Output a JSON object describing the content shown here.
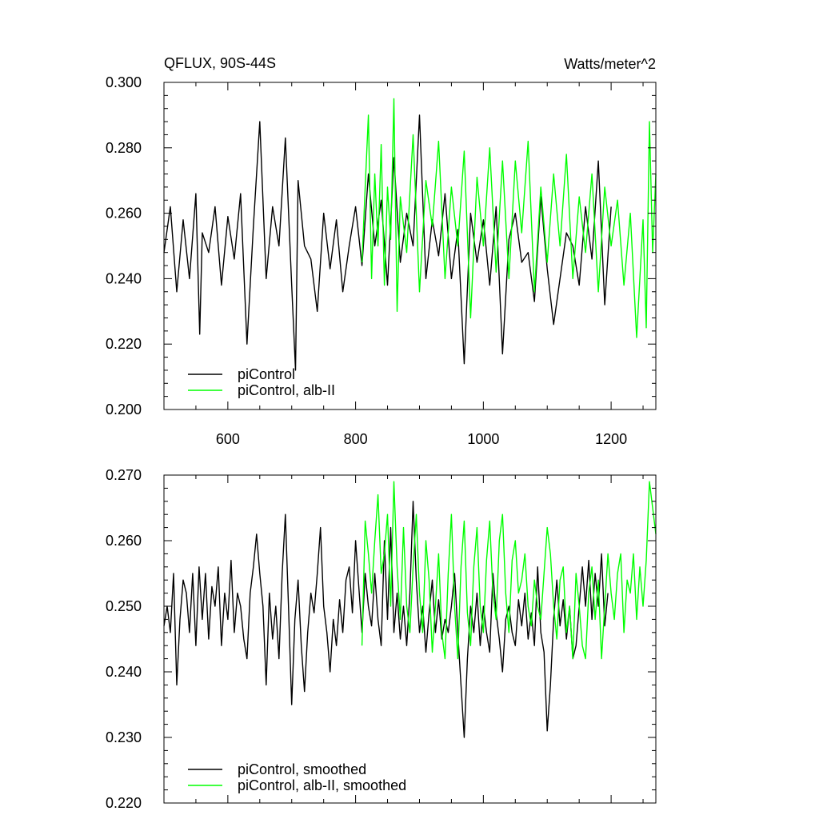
{
  "header": {
    "left": "QFLUX, 90S-44S",
    "right": "Watts/meter^2"
  },
  "colors": {
    "piControl": "#000000",
    "alb_II": "#00ff00",
    "axis": "#000000"
  },
  "chart_data": [
    {
      "type": "line",
      "title": "",
      "xlabel": "",
      "ylabel": "",
      "xlim": [
        500,
        1270
      ],
      "ylim": [
        0.2,
        0.3
      ],
      "x_ticks": [
        600,
        800,
        1000,
        1200
      ],
      "x_tick_labels": [
        "600",
        "800",
        "1000",
        "1200"
      ],
      "y_ticks": [
        0.2,
        0.22,
        0.24,
        0.26,
        0.28,
        0.3
      ],
      "y_tick_labels": [
        "0.200",
        "0.220",
        "0.240",
        "0.260",
        "0.280",
        "0.300"
      ],
      "grid": false,
      "legend_position": "bottom-left",
      "series": [
        {
          "name": "piControl",
          "color": "#000000",
          "x": [
            500,
            510,
            520,
            530,
            540,
            550,
            556,
            560,
            570,
            580,
            590,
            600,
            610,
            620,
            630,
            640,
            650,
            660,
            670,
            680,
            690,
            700,
            706,
            710,
            720,
            730,
            740,
            750,
            760,
            770,
            780,
            790,
            800,
            810,
            820,
            830,
            840,
            850,
            860,
            870,
            880,
            890,
            900,
            910,
            920,
            930,
            940,
            950,
            960,
            970,
            980,
            990,
            1000,
            1010,
            1020,
            1030,
            1040,
            1050,
            1060,
            1070,
            1080,
            1090,
            1100,
            1110,
            1120,
            1130,
            1140,
            1150,
            1160,
            1170,
            1180,
            1190,
            1200
          ],
          "y": [
            0.248,
            0.262,
            0.236,
            0.258,
            0.24,
            0.266,
            0.223,
            0.254,
            0.248,
            0.262,
            0.238,
            0.259,
            0.246,
            0.266,
            0.22,
            0.256,
            0.288,
            0.24,
            0.262,
            0.25,
            0.283,
            0.238,
            0.212,
            0.27,
            0.25,
            0.246,
            0.23,
            0.26,
            0.243,
            0.258,
            0.236,
            0.25,
            0.262,
            0.244,
            0.272,
            0.25,
            0.264,
            0.238,
            0.277,
            0.245,
            0.26,
            0.25,
            0.29,
            0.24,
            0.258,
            0.247,
            0.266,
            0.24,
            0.255,
            0.214,
            0.26,
            0.245,
            0.258,
            0.238,
            0.262,
            0.217,
            0.252,
            0.26,
            0.245,
            0.248,
            0.233,
            0.265,
            0.243,
            0.226,
            0.24,
            0.254,
            0.25,
            0.238,
            0.262,
            0.246,
            0.276,
            0.232,
            0.262
          ]
        },
        {
          "name": "piControl, alb-II",
          "color": "#00ff00",
          "x": [
            810,
            815,
            820,
            825,
            830,
            835,
            840,
            845,
            850,
            855,
            860,
            865,
            870,
            880,
            890,
            900,
            910,
            920,
            930,
            940,
            950,
            960,
            970,
            980,
            990,
            1000,
            1010,
            1020,
            1030,
            1040,
            1050,
            1060,
            1070,
            1080,
            1090,
            1100,
            1110,
            1120,
            1130,
            1140,
            1150,
            1160,
            1170,
            1180,
            1190,
            1200,
            1210,
            1220,
            1230,
            1240,
            1250,
            1255,
            1260,
            1265,
            1270
          ],
          "y": [
            0.245,
            0.268,
            0.29,
            0.24,
            0.272,
            0.25,
            0.281,
            0.238,
            0.268,
            0.252,
            0.295,
            0.23,
            0.265,
            0.248,
            0.284,
            0.236,
            0.27,
            0.256,
            0.282,
            0.24,
            0.268,
            0.25,
            0.279,
            0.228,
            0.271,
            0.25,
            0.28,
            0.242,
            0.276,
            0.24,
            0.276,
            0.254,
            0.282,
            0.236,
            0.268,
            0.245,
            0.272,
            0.25,
            0.278,
            0.24,
            0.265,
            0.248,
            0.272,
            0.236,
            0.268,
            0.25,
            0.264,
            0.238,
            0.26,
            0.222,
            0.258,
            0.225,
            0.288,
            0.248,
            0.272
          ]
        }
      ]
    },
    {
      "type": "line",
      "title": "",
      "xlabel": "",
      "ylabel": "",
      "xlim": [
        500,
        1270
      ],
      "ylim": [
        0.22,
        0.27
      ],
      "x_ticks": [
        600,
        800,
        1000,
        1200
      ],
      "x_tick_labels": [],
      "y_ticks": [
        0.22,
        0.23,
        0.24,
        0.25,
        0.26,
        0.27
      ],
      "y_tick_labels": [
        "0.220",
        "0.230",
        "0.240",
        "0.250",
        "0.260",
        "0.270"
      ],
      "grid": false,
      "legend_position": "bottom-left",
      "series": [
        {
          "name": "piControl, smoothed",
          "color": "#000000",
          "x": [
            500,
            505,
            510,
            515,
            520,
            525,
            530,
            535,
            540,
            545,
            550,
            555,
            560,
            565,
            570,
            575,
            580,
            585,
            590,
            595,
            600,
            605,
            610,
            615,
            620,
            625,
            630,
            635,
            640,
            645,
            650,
            655,
            660,
            665,
            670,
            675,
            680,
            685,
            690,
            695,
            700,
            705,
            710,
            715,
            720,
            725,
            730,
            735,
            740,
            745,
            750,
            755,
            760,
            765,
            770,
            775,
            780,
            785,
            790,
            795,
            800,
            805,
            810,
            815,
            820,
            825,
            830,
            835,
            840,
            845,
            850,
            855,
            860,
            865,
            870,
            875,
            880,
            885,
            890,
            895,
            900,
            905,
            910,
            915,
            920,
            925,
            930,
            935,
            940,
            945,
            950,
            955,
            960,
            965,
            970,
            975,
            980,
            985,
            990,
            995,
            1000,
            1005,
            1010,
            1015,
            1020,
            1025,
            1030,
            1035,
            1040,
            1045,
            1050,
            1055,
            1060,
            1065,
            1070,
            1075,
            1080,
            1085,
            1090,
            1095,
            1100,
            1105,
            1110,
            1115,
            1120,
            1125,
            1130,
            1135,
            1140,
            1145,
            1150,
            1155,
            1160,
            1165,
            1170,
            1175,
            1180,
            1185,
            1190,
            1195
          ],
          "y": [
            0.247,
            0.25,
            0.246,
            0.255,
            0.238,
            0.248,
            0.254,
            0.252,
            0.246,
            0.255,
            0.244,
            0.256,
            0.248,
            0.255,
            0.245,
            0.253,
            0.25,
            0.256,
            0.244,
            0.252,
            0.248,
            0.257,
            0.246,
            0.252,
            0.25,
            0.245,
            0.242,
            0.252,
            0.256,
            0.261,
            0.255,
            0.25,
            0.238,
            0.252,
            0.245,
            0.25,
            0.242,
            0.255,
            0.264,
            0.25,
            0.235,
            0.248,
            0.254,
            0.244,
            0.237,
            0.246,
            0.252,
            0.249,
            0.255,
            0.262,
            0.25,
            0.246,
            0.24,
            0.248,
            0.244,
            0.251,
            0.246,
            0.254,
            0.256,
            0.249,
            0.26,
            0.253,
            0.246,
            0.255,
            0.25,
            0.247,
            0.255,
            0.248,
            0.244,
            0.26,
            0.248,
            0.262,
            0.246,
            0.252,
            0.245,
            0.25,
            0.244,
            0.252,
            0.266,
            0.254,
            0.246,
            0.25,
            0.243,
            0.249,
            0.254,
            0.246,
            0.251,
            0.245,
            0.248,
            0.246,
            0.25,
            0.255,
            0.246,
            0.238,
            0.23,
            0.242,
            0.25,
            0.246,
            0.252,
            0.244,
            0.25,
            0.246,
            0.243,
            0.255,
            0.249,
            0.245,
            0.24,
            0.248,
            0.25,
            0.246,
            0.244,
            0.251,
            0.247,
            0.252,
            0.245,
            0.249,
            0.244,
            0.256,
            0.246,
            0.243,
            0.231,
            0.238,
            0.248,
            0.254,
            0.247,
            0.251,
            0.245,
            0.25,
            0.242,
            0.244,
            0.25,
            0.256,
            0.25,
            0.257,
            0.248,
            0.255,
            0.25,
            0.258,
            0.247,
            0.252
          ]
        },
        {
          "name": "piControl, alb-II, smoothed",
          "color": "#00ff00",
          "x": [
            810,
            815,
            820,
            825,
            830,
            835,
            840,
            845,
            850,
            855,
            860,
            865,
            870,
            875,
            880,
            885,
            890,
            895,
            900,
            905,
            910,
            915,
            920,
            925,
            930,
            935,
            940,
            945,
            950,
            955,
            960,
            965,
            970,
            975,
            980,
            985,
            990,
            995,
            1000,
            1005,
            1010,
            1015,
            1020,
            1025,
            1030,
            1035,
            1040,
            1045,
            1050,
            1055,
            1060,
            1065,
            1070,
            1075,
            1080,
            1085,
            1090,
            1095,
            1100,
            1105,
            1110,
            1115,
            1120,
            1125,
            1130,
            1135,
            1140,
            1145,
            1150,
            1155,
            1160,
            1165,
            1170,
            1175,
            1180,
            1185,
            1190,
            1195,
            1200,
            1205,
            1210,
            1215,
            1220,
            1225,
            1230,
            1235,
            1240,
            1245,
            1250,
            1255,
            1260,
            1265,
            1270
          ],
          "y": [
            0.244,
            0.263,
            0.258,
            0.252,
            0.26,
            0.267,
            0.255,
            0.258,
            0.264,
            0.25,
            0.269,
            0.256,
            0.248,
            0.262,
            0.25,
            0.246,
            0.256,
            0.264,
            0.252,
            0.246,
            0.26,
            0.254,
            0.243,
            0.25,
            0.258,
            0.246,
            0.242,
            0.255,
            0.264,
            0.25,
            0.242,
            0.256,
            0.263,
            0.249,
            0.244,
            0.256,
            0.262,
            0.25,
            0.246,
            0.257,
            0.263,
            0.252,
            0.248,
            0.26,
            0.264,
            0.252,
            0.246,
            0.257,
            0.26,
            0.252,
            0.254,
            0.258,
            0.25,
            0.247,
            0.254,
            0.25,
            0.248,
            0.255,
            0.262,
            0.258,
            0.25,
            0.245,
            0.254,
            0.256,
            0.246,
            0.25,
            0.242,
            0.255,
            0.25,
            0.244,
            0.242,
            0.252,
            0.256,
            0.248,
            0.254,
            0.242,
            0.25,
            0.258,
            0.252,
            0.248,
            0.255,
            0.258,
            0.246,
            0.254,
            0.252,
            0.258,
            0.248,
            0.256,
            0.25,
            0.257,
            0.269,
            0.265,
            0.261
          ]
        }
      ]
    }
  ]
}
